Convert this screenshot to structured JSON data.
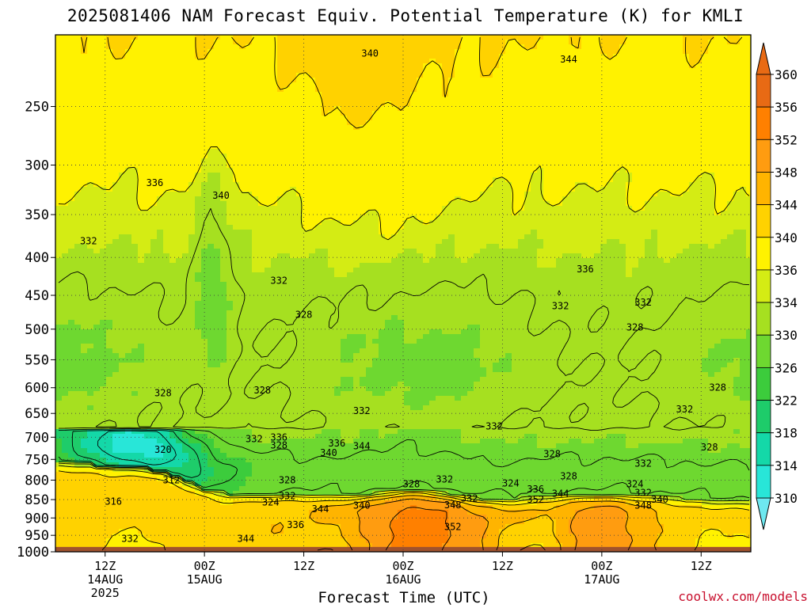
{
  "title": "2025081406 NAM Forecast Equiv. Potential Temperature (K) for KMLI",
  "credit": "coolwx.com/models",
  "chart_data": {
    "type": "heatmap",
    "title": "2025081406 NAM Forecast Equiv. Potential Temperature (K) for KMLI",
    "xlabel": "Forecast Time (UTC)",
    "ylabel": "",
    "y_scale": "log (pressure, hPa)",
    "ylim": [
      1000,
      200
    ],
    "grid": true,
    "y_ticks": [
      250,
      300,
      350,
      400,
      450,
      500,
      550,
      600,
      650,
      700,
      750,
      800,
      850,
      900,
      950,
      1000
    ],
    "x_ticks": [
      {
        "hour": 6,
        "lines": [
          "12Z",
          "14AUG",
          "2025"
        ]
      },
      {
        "hour": 18,
        "lines": [
          "00Z",
          "15AUG"
        ]
      },
      {
        "hour": 30,
        "lines": [
          "12Z"
        ]
      },
      {
        "hour": 42,
        "lines": [
          "00Z",
          "16AUG"
        ]
      },
      {
        "hour": 54,
        "lines": [
          "12Z"
        ]
      },
      {
        "hour": 66,
        "lines": [
          "00Z",
          "17AUG"
        ]
      },
      {
        "hour": 78,
        "lines": [
          "12Z"
        ]
      }
    ],
    "xlim_hours": [
      0,
      84
    ],
    "colorbar": {
      "labels": [
        310,
        314,
        318,
        322,
        326,
        330,
        334,
        336,
        340,
        344,
        348,
        352,
        356,
        360
      ],
      "colors": [
        "#6ee8f0",
        "#28e6d8",
        "#14d8a8",
        "#1ecc6a",
        "#3ccc3c",
        "#6ed830",
        "#a6e020",
        "#d4ec14",
        "#fff200",
        "#ffd200",
        "#ffb400",
        "#ff9c10",
        "#ff8000",
        "#e86a14"
      ]
    },
    "surface_color": "#a0522d",
    "contour_labels": [
      {
        "v": 340,
        "hour": 38,
        "p": 212
      },
      {
        "v": 344,
        "hour": 62,
        "p": 216
      },
      {
        "v": 336,
        "hour": 12,
        "p": 317
      },
      {
        "v": 340,
        "hour": 20,
        "p": 330
      },
      {
        "v": 332,
        "hour": 4,
        "p": 380
      },
      {
        "v": 336,
        "hour": 64,
        "p": 415
      },
      {
        "v": 332,
        "hour": 27,
        "p": 430
      },
      {
        "v": 328,
        "hour": 30,
        "p": 478
      },
      {
        "v": 332,
        "hour": 61,
        "p": 465
      },
      {
        "v": 332,
        "hour": 71,
        "p": 460
      },
      {
        "v": 328,
        "hour": 70,
        "p": 497
      },
      {
        "v": 328,
        "hour": 13,
        "p": 610
      },
      {
        "v": 328,
        "hour": 25,
        "p": 605
      },
      {
        "v": 328,
        "hour": 80,
        "p": 600
      },
      {
        "v": 332,
        "hour": 37,
        "p": 645
      },
      {
        "v": 332,
        "hour": 76,
        "p": 642
      },
      {
        "v": 332,
        "hour": 53,
        "p": 677
      },
      {
        "v": 336,
        "hour": 27,
        "p": 700
      },
      {
        "v": 332,
        "hour": 24,
        "p": 704
      },
      {
        "v": 328,
        "hour": 27,
        "p": 718
      },
      {
        "v": 336,
        "hour": 34,
        "p": 713
      },
      {
        "v": 344,
        "hour": 37,
        "p": 720
      },
      {
        "v": 340,
        "hour": 33,
        "p": 735
      },
      {
        "v": 328,
        "hour": 60,
        "p": 738
      },
      {
        "v": 332,
        "hour": 71,
        "p": 760
      },
      {
        "v": 328,
        "hour": 79,
        "p": 722
      },
      {
        "v": 320,
        "hour": 13,
        "p": 728
      },
      {
        "v": 312,
        "hour": 14,
        "p": 800
      },
      {
        "v": 328,
        "hour": 28,
        "p": 800
      },
      {
        "v": 316,
        "hour": 7,
        "p": 855
      },
      {
        "v": 332,
        "hour": 28,
        "p": 840
      },
      {
        "v": 324,
        "hour": 26,
        "p": 857
      },
      {
        "v": 344,
        "hour": 32,
        "p": 875
      },
      {
        "v": 340,
        "hour": 37,
        "p": 866
      },
      {
        "v": 336,
        "hour": 29,
        "p": 920
      },
      {
        "v": 344,
        "hour": 23,
        "p": 960
      },
      {
        "v": 332,
        "hour": 9,
        "p": 960
      },
      {
        "v": 328,
        "hour": 43,
        "p": 810
      },
      {
        "v": 332,
        "hour": 47,
        "p": 798
      },
      {
        "v": 332,
        "hour": 50,
        "p": 847
      },
      {
        "v": 348,
        "hour": 48,
        "p": 865
      },
      {
        "v": 352,
        "hour": 48,
        "p": 925
      },
      {
        "v": 324,
        "hour": 55,
        "p": 808
      },
      {
        "v": 336,
        "hour": 58,
        "p": 823
      },
      {
        "v": 344,
        "hour": 61,
        "p": 834
      },
      {
        "v": 352,
        "hour": 58,
        "p": 850
      },
      {
        "v": 328,
        "hour": 62,
        "p": 790
      },
      {
        "v": 324,
        "hour": 70,
        "p": 810
      },
      {
        "v": 332,
        "hour": 71,
        "p": 832
      },
      {
        "v": 340,
        "hour": 73,
        "p": 850
      },
      {
        "v": 348,
        "hour": 71,
        "p": 866
      }
    ]
  }
}
